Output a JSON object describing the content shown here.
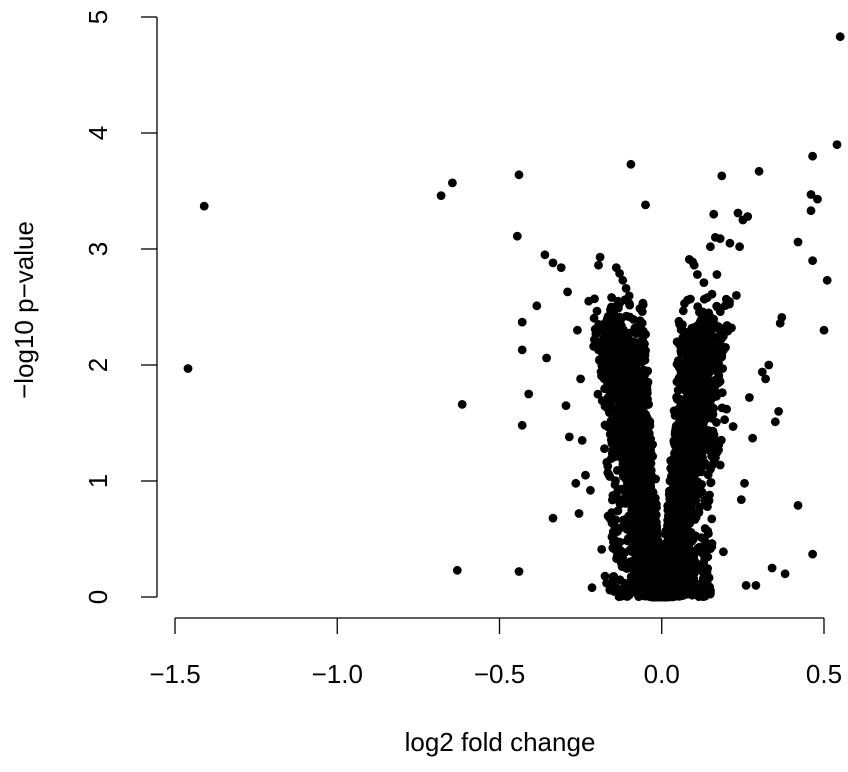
{
  "chart_data": {
    "type": "scatter",
    "title": "",
    "xlabel": "log2 fold change",
    "ylabel": "−log10 p−value",
    "xlim": [
      -1.5,
      0.55
    ],
    "ylim": [
      0,
      5
    ],
    "x_ticks": [
      -1.5,
      -1.0,
      -0.5,
      0.0,
      0.5
    ],
    "x_tick_labels": [
      "−1.5",
      "−1.0",
      "−0.5",
      "0.0",
      "0.5"
    ],
    "y_ticks": [
      0,
      1,
      2,
      3,
      4,
      5
    ],
    "y_tick_labels": [
      "0",
      "1",
      "2",
      "3",
      "4",
      "5"
    ],
    "grid": false,
    "legend": "none",
    "marker_color": "#000000",
    "points": [
      [
        -1.46,
        1.97
      ],
      [
        -1.41,
        3.37
      ],
      [
        -0.68,
        3.46
      ],
      [
        -0.645,
        3.57
      ],
      [
        -0.63,
        0.23
      ],
      [
        -0.615,
        1.66
      ],
      [
        -0.44,
        3.64
      ],
      [
        -0.44,
        0.22
      ],
      [
        -0.445,
        3.11
      ],
      [
        -0.43,
        2.37
      ],
      [
        -0.43,
        2.13
      ],
      [
        -0.43,
        1.48
      ],
      [
        -0.41,
        1.75
      ],
      [
        -0.385,
        2.51
      ],
      [
        -0.36,
        2.95
      ],
      [
        -0.355,
        2.06
      ],
      [
        -0.335,
        2.88
      ],
      [
        -0.335,
        0.68
      ],
      [
        -0.31,
        2.84
      ],
      [
        -0.295,
        1.65
      ],
      [
        -0.29,
        2.63
      ],
      [
        -0.285,
        1.38
      ],
      [
        -0.265,
        0.98
      ],
      [
        -0.26,
        2.3
      ],
      [
        -0.255,
        0.72
      ],
      [
        -0.25,
        1.88
      ],
      [
        -0.245,
        1.35
      ],
      [
        -0.235,
        1.05
      ],
      [
        -0.225,
        2.55
      ],
      [
        -0.22,
        0.92
      ],
      [
        -0.215,
        0.08
      ],
      [
        -0.21,
        2.16
      ],
      [
        -0.195,
        2.86
      ],
      [
        -0.19,
        2.93
      ],
      [
        -0.185,
        0.41
      ],
      [
        -0.175,
        0.18
      ],
      [
        -0.17,
        0.12
      ],
      [
        -0.165,
        2.42
      ],
      [
        -0.16,
        0.06
      ],
      [
        -0.15,
        0.65
      ],
      [
        -0.14,
        2.84
      ],
      [
        -0.135,
        2.55
      ],
      [
        -0.13,
        2.79
      ],
      [
        -0.125,
        0.05
      ],
      [
        -0.12,
        2.73
      ],
      [
        -0.115,
        0.12
      ],
      [
        -0.11,
        2.66
      ],
      [
        -0.1,
        2.53
      ],
      [
        -0.095,
        3.73
      ],
      [
        -0.09,
        2.19
      ],
      [
        -0.085,
        0.08
      ],
      [
        -0.05,
        3.38
      ],
      [
        0.0,
        0.0
      ],
      [
        0.05,
        0.06
      ],
      [
        0.055,
        2.35
      ],
      [
        0.07,
        2.53
      ],
      [
        0.08,
        2.56
      ],
      [
        0.085,
        2.91
      ],
      [
        0.09,
        0.04
      ],
      [
        0.095,
        2.89
      ],
      [
        0.1,
        2.86
      ],
      [
        0.11,
        2.78
      ],
      [
        0.12,
        2.45
      ],
      [
        0.13,
        2.71
      ],
      [
        0.14,
        0.12
      ],
      [
        0.15,
        3.02
      ],
      [
        0.155,
        2.61
      ],
      [
        0.16,
        3.3
      ],
      [
        0.165,
        3.1
      ],
      [
        0.17,
        2.78
      ],
      [
        0.175,
        2.02
      ],
      [
        0.18,
        3.09
      ],
      [
        0.185,
        3.63
      ],
      [
        0.19,
        0.39
      ],
      [
        0.2,
        1.62
      ],
      [
        0.21,
        3.05
      ],
      [
        0.215,
        2.32
      ],
      [
        0.22,
        1.47
      ],
      [
        0.23,
        2.6
      ],
      [
        0.235,
        3.31
      ],
      [
        0.24,
        3.02
      ],
      [
        0.245,
        0.84
      ],
      [
        0.25,
        3.25
      ],
      [
        0.255,
        0.98
      ],
      [
        0.26,
        0.1
      ],
      [
        0.265,
        3.28
      ],
      [
        0.27,
        1.72
      ],
      [
        0.28,
        1.37
      ],
      [
        0.29,
        0.1
      ],
      [
        0.3,
        3.67
      ],
      [
        0.31,
        1.94
      ],
      [
        0.32,
        1.88
      ],
      [
        0.33,
        2.0
      ],
      [
        0.34,
        0.25
      ],
      [
        0.35,
        1.51
      ],
      [
        0.36,
        1.6
      ],
      [
        0.365,
        2.36
      ],
      [
        0.37,
        2.41
      ],
      [
        0.38,
        0.2
      ],
      [
        0.42,
        3.06
      ],
      [
        0.42,
        0.79
      ],
      [
        0.46,
        3.33
      ],
      [
        0.46,
        3.47
      ],
      [
        0.465,
        3.8
      ],
      [
        0.465,
        2.9
      ],
      [
        0.465,
        0.37
      ],
      [
        0.48,
        3.43
      ],
      [
        0.5,
        2.3
      ],
      [
        0.51,
        2.73
      ],
      [
        0.54,
        3.9
      ],
      [
        0.55,
        4.83
      ]
    ]
  }
}
